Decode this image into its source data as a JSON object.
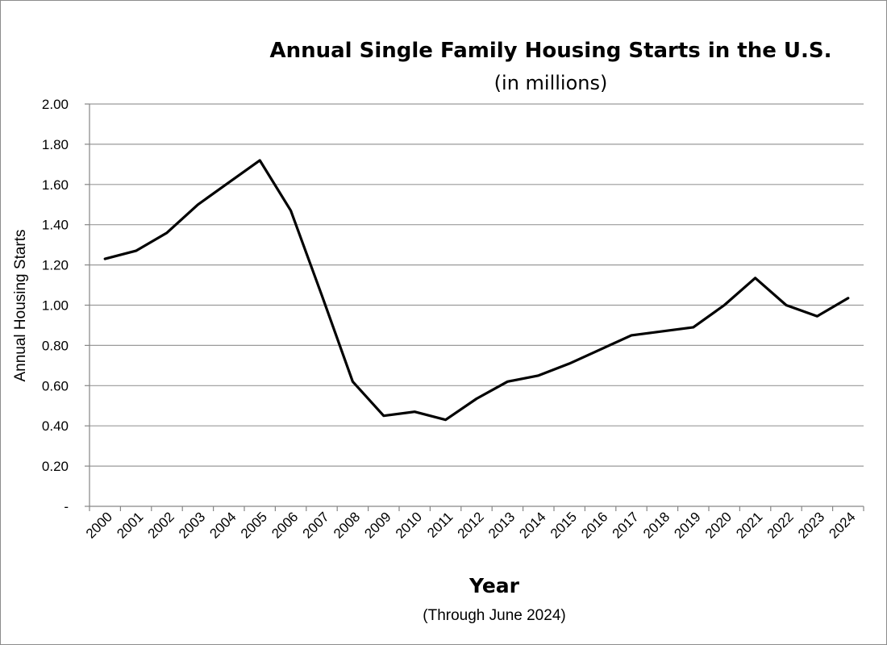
{
  "chart_data": {
    "type": "line",
    "title": "Annual Single Family Housing Starts in the U.S.",
    "subtitle": "(in millions)",
    "ylabel": "Annual Housing Starts",
    "xlabel": "Year",
    "note": "(Through June 2024)",
    "ylim": [
      0,
      2.0
    ],
    "y_ticks": [
      "-",
      "0.20",
      "0.40",
      "0.60",
      "0.80",
      "1.00",
      "1.20",
      "1.40",
      "1.60",
      "1.80",
      "2.00"
    ],
    "y_tick_values": [
      0,
      0.2,
      0.4,
      0.6,
      0.8,
      1.0,
      1.2,
      1.4,
      1.6,
      1.8,
      2.0
    ],
    "grid": true,
    "legend": "none",
    "categories": [
      "2000",
      "2001",
      "2002",
      "2003",
      "2004",
      "2005",
      "2006",
      "2007",
      "2008",
      "2009",
      "2010",
      "2011",
      "2012",
      "2013",
      "2014",
      "2015",
      "2016",
      "2017",
      "2018",
      "2019",
      "2020",
      "2021",
      "2022",
      "2023",
      "2024"
    ],
    "series": [
      {
        "color": "#000000",
        "values": [
          1.23,
          1.27,
          1.36,
          1.5,
          1.61,
          1.72,
          1.47,
          1.05,
          0.62,
          0.45,
          0.47,
          0.43,
          0.535,
          0.62,
          0.65,
          0.71,
          0.78,
          0.85,
          0.87,
          0.89,
          1.0,
          1.135,
          1.0,
          0.945,
          1.035
        ]
      }
    ]
  }
}
